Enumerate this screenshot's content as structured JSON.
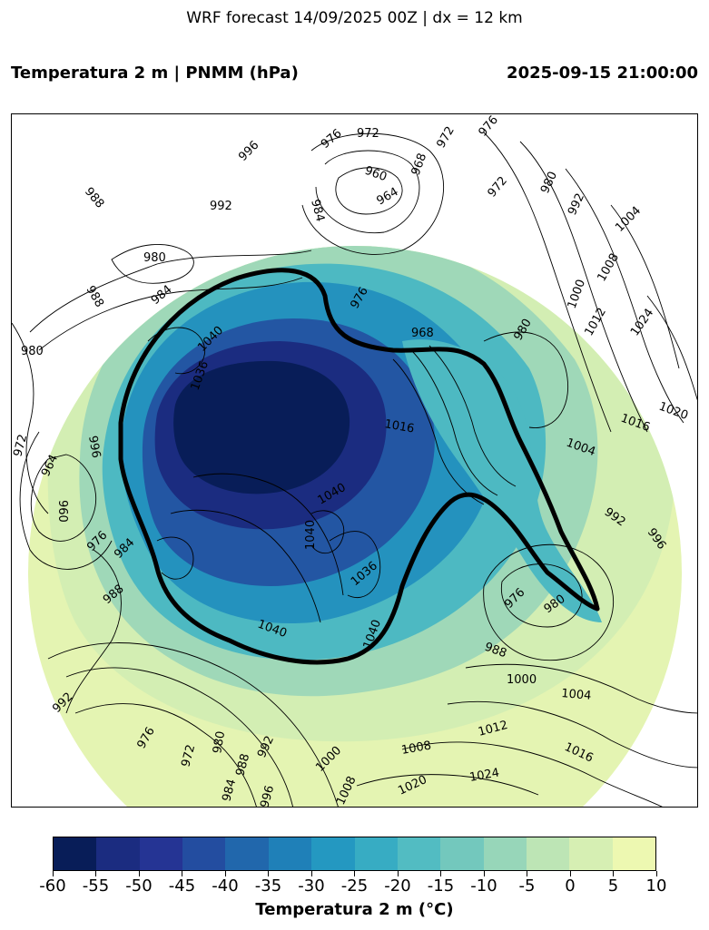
{
  "header": {
    "suptitle": "WRF forecast 14/09/2025 00Z | dx = 12 km",
    "left_title": "Temperatura 2 m | PNMM (hPa)",
    "right_title": "2025-09-15 21:00:00"
  },
  "colorbar": {
    "label": "Temperatura 2 m (°C)",
    "ticks": [
      "-60",
      "-55",
      "-50",
      "-45",
      "-40",
      "-35",
      "-30",
      "-25",
      "-20",
      "-15",
      "-10",
      "-5",
      "0",
      "5",
      "10"
    ],
    "colors": [
      "#081d58",
      "#1b2c80",
      "#253494",
      "#234da0",
      "#2167ac",
      "#1f80b8",
      "#2498c1",
      "#37acc3",
      "#52bcc2",
      "#73c8bd",
      "#97d6b9",
      "#bde5b5",
      "#d6efb3",
      "#edf8b1",
      "#fbfdcb"
    ]
  },
  "map": {
    "contour_labels": [
      "996",
      "972",
      "976",
      "972",
      "976",
      "988",
      "992",
      "984",
      "960",
      "964",
      "968",
      "972",
      "980",
      "992",
      "1004",
      "980",
      "988",
      "980",
      "984",
      "976",
      "968",
      "1008",
      "1000",
      "1012",
      "1024",
      "1020",
      "1016",
      "1004",
      "980",
      "1040",
      "1036",
      "972",
      "964",
      "960",
      "996",
      "976",
      "984",
      "988",
      "1040",
      "1040",
      "1036",
      "1040",
      "1040",
      "1016",
      "992",
      "996",
      "976",
      "980",
      "988",
      "1000",
      "1004",
      "1012",
      "1008",
      "1024",
      "1020",
      "1016",
      "1000",
      "992",
      "976",
      "972",
      "980",
      "988",
      "984",
      "992",
      "996",
      "1008"
    ]
  }
}
